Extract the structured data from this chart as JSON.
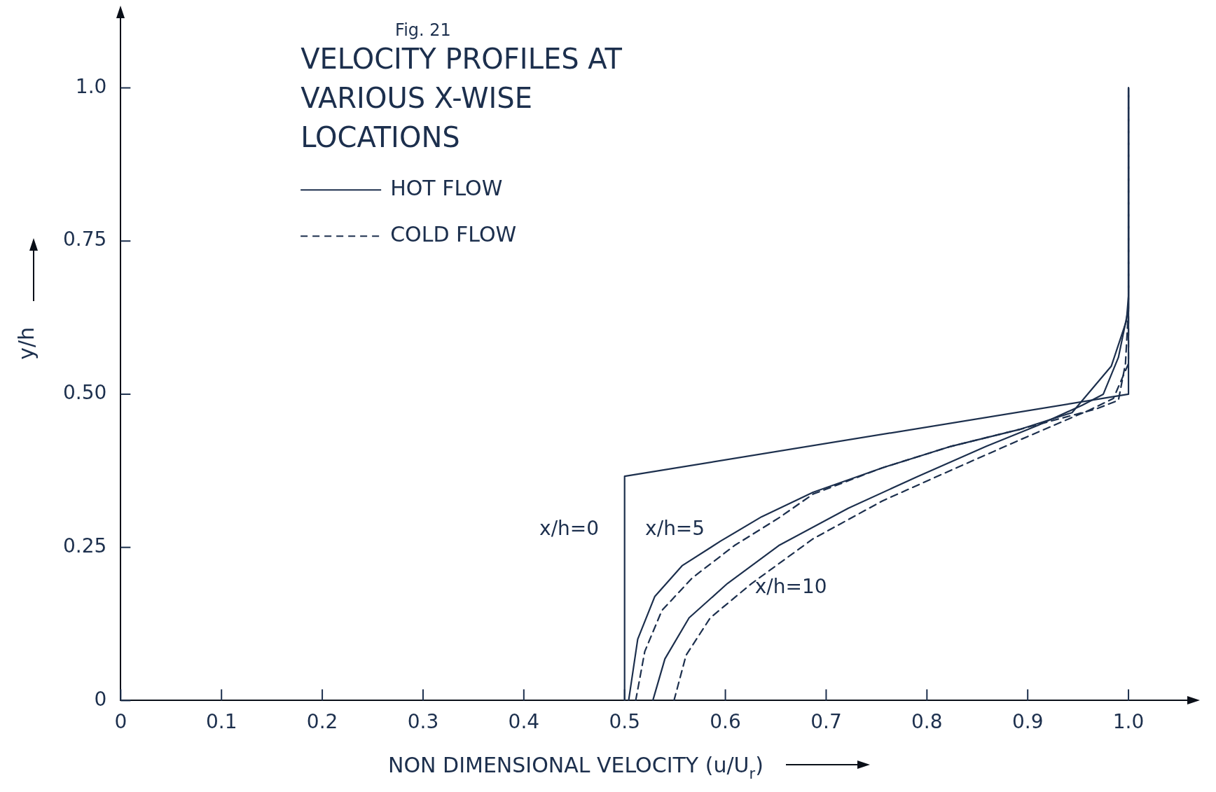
{
  "chart_data": {
    "type": "line",
    "title": "VELOCITY PROFILES AT VARIOUS X-WISE LOCATIONS",
    "xlabel": "NON DIMENSIONAL VELOCITY (u/U$_{r}$)",
    "ylabel": "y/h",
    "xlim": [
      0,
      1.05
    ],
    "ylim": [
      0,
      1.1
    ],
    "xticks": [
      0,
      0.1,
      0.2,
      0.3,
      0.4,
      0.5,
      0.6,
      0.7,
      0.8,
      0.9,
      {
        "value": 1,
        "label": "1.0"
      }
    ],
    "yticks": [
      0,
      0.25,
      {
        "value": 0.5,
        "label": "0.50"
      },
      0.75,
      {
        "value": 1,
        "label": "1.0"
      }
    ],
    "legend": "top left",
    "marker": "none",
    "series": [
      {
        "name": "HOT FLOW",
        "color": "#1c2f4d",
        "line_style": "solid",
        "x": [
          0.5,
          0.5,
          1.0,
          1.0
        ],
        "values": [
          0,
          0.366,
          0.5,
          1.0
        ]
      },
      {
        "color": "#1c2f4d",
        "line_style": "solid",
        "x": [
          0.504,
          0.513,
          0.53,
          0.557,
          0.595,
          0.636,
          0.687,
          0.756,
          0.824,
          0.893,
          0.944,
          0.983,
          0.998,
          1.0,
          1.0
        ],
        "values": [
          0,
          0.1,
          0.17,
          0.22,
          0.26,
          0.3,
          0.34,
          0.38,
          0.415,
          0.443,
          0.47,
          0.546,
          0.62,
          0.66,
          1.0
        ]
      },
      {
        "name": "COLD FLOW",
        "color": "#1c2f4d",
        "line_style": "dashed",
        "x": [
          0.511,
          0.52,
          0.537,
          0.567,
          0.609,
          0.653,
          0.687,
          0.756,
          0.824,
          0.893,
          0.968,
          0.99,
          0.997,
          1.0,
          1.0
        ],
        "values": [
          0,
          0.08,
          0.147,
          0.2,
          0.253,
          0.298,
          0.337,
          0.38,
          0.415,
          0.443,
          0.476,
          0.49,
          0.55,
          0.64,
          1.0
        ]
      },
      {
        "color": "#1c2f4d",
        "line_style": "solid",
        "x": [
          0.528,
          0.54,
          0.564,
          0.602,
          0.653,
          0.722,
          0.79,
          0.859,
          0.91,
          0.954,
          0.975,
          0.99,
          1.0,
          1.0
        ],
        "values": [
          0,
          0.068,
          0.135,
          0.191,
          0.253,
          0.314,
          0.365,
          0.415,
          0.449,
          0.482,
          0.5,
          0.56,
          0.64,
          1.0
        ]
      },
      {
        "color": "#1c2f4d",
        "line_style": "dashed",
        "x": [
          0.549,
          0.561,
          0.585,
          0.626,
          0.687,
          0.756,
          0.824,
          0.893,
          0.961,
          0.985,
          1.0,
          1.0
        ],
        "values": [
          0,
          0.074,
          0.135,
          0.191,
          0.264,
          0.326,
          0.376,
          0.426,
          0.474,
          0.493,
          0.55,
          1.0
        ]
      }
    ],
    "annotations": [
      "Fig. 21",
      "x/h=0",
      "x/h=5",
      "x/h=10"
    ]
  }
}
